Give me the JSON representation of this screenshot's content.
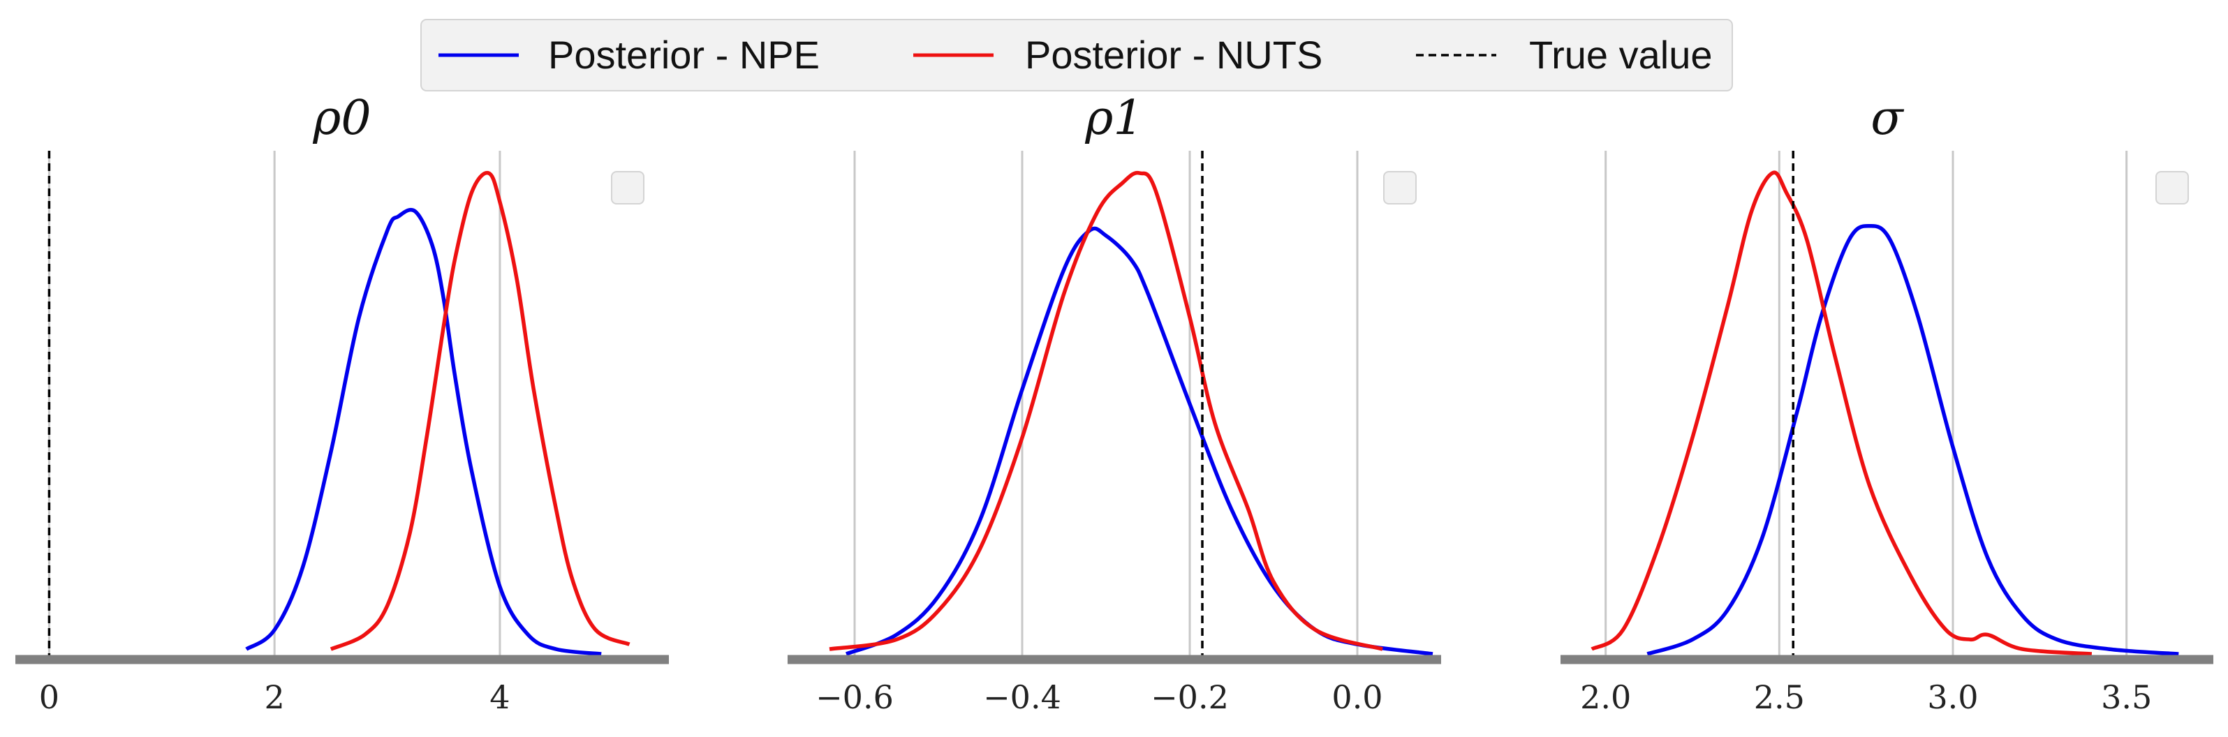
{
  "legend": {
    "entries": [
      {
        "label": "Posterior - NPE",
        "color": "#0000ee",
        "style": "solid"
      },
      {
        "label": "Posterior - NUTS",
        "color": "#ee1111",
        "style": "solid"
      },
      {
        "label": "True value",
        "color": "#000000",
        "style": "dashed"
      }
    ],
    "placement": "top-center"
  },
  "colors": {
    "npe": "#0000ee",
    "nuts": "#ee1111",
    "true_value": "#000000",
    "grid": "#c8c8c8",
    "axis": "#808080"
  },
  "chart_data": [
    {
      "type": "line",
      "title": "ρ0",
      "xlim": [
        -0.3,
        5.5
      ],
      "xticks": [
        0,
        2,
        4
      ],
      "xtick_labels": [
        "0",
        "2",
        "4"
      ],
      "grid": "vertical",
      "true_value": 0,
      "series": [
        {
          "name": "Posterior - NPE",
          "x": [
            1.75,
            2.0,
            2.25,
            2.5,
            2.75,
            3.0,
            3.1,
            3.25,
            3.4,
            3.5,
            3.6,
            3.75,
            4.0,
            4.25,
            4.5,
            4.9
          ],
          "y": [
            0.01,
            0.05,
            0.18,
            0.42,
            0.7,
            0.88,
            0.91,
            0.92,
            0.85,
            0.74,
            0.58,
            0.38,
            0.14,
            0.04,
            0.01,
            0.0
          ]
        },
        {
          "name": "Posterior - NUTS",
          "x": [
            2.5,
            2.8,
            3.0,
            3.2,
            3.35,
            3.5,
            3.6,
            3.75,
            3.9,
            4.0,
            4.15,
            4.3,
            4.5,
            4.65,
            4.85,
            5.15
          ],
          "y": [
            0.01,
            0.04,
            0.1,
            0.25,
            0.45,
            0.68,
            0.82,
            0.96,
            1.0,
            0.94,
            0.78,
            0.55,
            0.3,
            0.15,
            0.05,
            0.02
          ]
        }
      ]
    },
    {
      "type": "line",
      "title": "ρ1",
      "xlim": [
        -0.68,
        0.1
      ],
      "xticks": [
        -0.6,
        -0.4,
        -0.2,
        0.0
      ],
      "xtick_labels": [
        "−0.6",
        "−0.4",
        "−0.2",
        "0.0"
      ],
      "grid": "vertical",
      "true_value": -0.185,
      "series": [
        {
          "name": "Posterior - NPE",
          "x": [
            -0.61,
            -0.55,
            -0.5,
            -0.45,
            -0.4,
            -0.35,
            -0.32,
            -0.3,
            -0.27,
            -0.25,
            -0.2,
            -0.15,
            -0.1,
            -0.05,
            0.0,
            0.09
          ],
          "y": [
            0.0,
            0.04,
            0.12,
            0.28,
            0.55,
            0.8,
            0.88,
            0.87,
            0.82,
            0.75,
            0.52,
            0.3,
            0.14,
            0.05,
            0.02,
            0.0
          ]
        },
        {
          "name": "Posterior - NUTS",
          "x": [
            -0.63,
            -0.55,
            -0.5,
            -0.45,
            -0.4,
            -0.35,
            -0.31,
            -0.28,
            -0.26,
            -0.24,
            -0.2,
            -0.17,
            -0.13,
            -0.1,
            -0.05,
            0.03
          ],
          "y": [
            0.01,
            0.03,
            0.09,
            0.22,
            0.45,
            0.75,
            0.92,
            0.98,
            1.0,
            0.96,
            0.7,
            0.48,
            0.3,
            0.15,
            0.05,
            0.01
          ]
        }
      ]
    },
    {
      "type": "line",
      "title": "σ",
      "xlim": [
        1.87,
        3.75
      ],
      "xticks": [
        2.0,
        2.5,
        3.0,
        3.5
      ],
      "xtick_labels": [
        "2.0",
        "2.5",
        "3.0",
        "3.5"
      ],
      "grid": "vertical",
      "true_value": 2.54,
      "series": [
        {
          "name": "Posterior - NPE",
          "x": [
            2.12,
            2.25,
            2.35,
            2.45,
            2.55,
            2.62,
            2.7,
            2.76,
            2.82,
            2.9,
            3.0,
            3.1,
            3.2,
            3.3,
            3.45,
            3.65
          ],
          "y": [
            0.0,
            0.03,
            0.09,
            0.24,
            0.5,
            0.7,
            0.86,
            0.89,
            0.86,
            0.7,
            0.43,
            0.2,
            0.08,
            0.03,
            0.01,
            0.0
          ]
        },
        {
          "name": "Posterior - NUTS",
          "x": [
            1.96,
            2.05,
            2.15,
            2.25,
            2.35,
            2.42,
            2.48,
            2.52,
            2.58,
            2.66,
            2.76,
            2.88,
            2.98,
            3.05,
            3.1,
            3.2,
            3.4
          ],
          "y": [
            0.01,
            0.05,
            0.22,
            0.45,
            0.72,
            0.92,
            1.0,
            0.96,
            0.86,
            0.62,
            0.35,
            0.16,
            0.05,
            0.03,
            0.04,
            0.01,
            0.0
          ]
        }
      ]
    }
  ]
}
